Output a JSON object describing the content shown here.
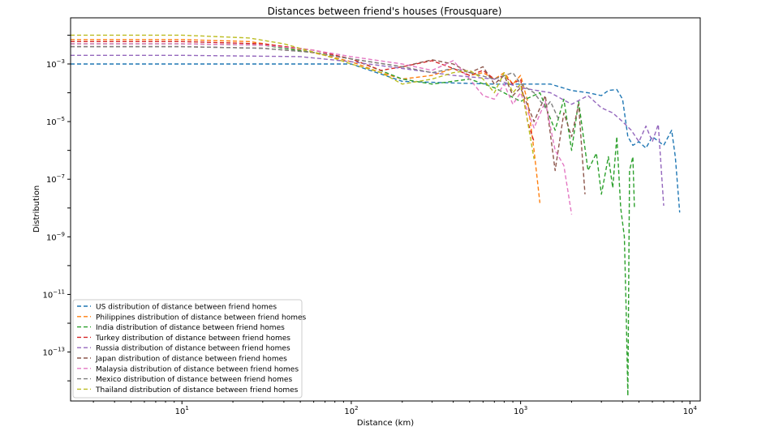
{
  "chart_data": {
    "type": "line",
    "title": "Distances between friend's houses (Frousquare)",
    "xlabel": "Distance (km)",
    "ylabel": "Distribution",
    "xscale": "log",
    "yscale": "log",
    "xlim": [
      2.2,
      11500
    ],
    "ylim": [
      2e-15,
      0.04
    ],
    "x_ticks": [
      {
        "value": 10,
        "base": "10",
        "exp": "1"
      },
      {
        "value": 100,
        "base": "10",
        "exp": "2"
      },
      {
        "value": 1000,
        "base": "10",
        "exp": "3"
      },
      {
        "value": 10000,
        "base": "10",
        "exp": "4"
      }
    ],
    "y_ticks": [
      {
        "value": 0.001,
        "base": "10",
        "exp": "−3"
      },
      {
        "value": 1e-05,
        "base": "10",
        "exp": "−5"
      },
      {
        "value": 1e-07,
        "base": "10",
        "exp": "−7"
      },
      {
        "value": 1e-09,
        "base": "10",
        "exp": "−9"
      },
      {
        "value": 1e-11,
        "base": "10",
        "exp": "−11"
      },
      {
        "value": 1e-13,
        "base": "10",
        "exp": "−13"
      }
    ],
    "grid": false,
    "legend_position": "lower-left",
    "line_style": "dashed",
    "series": [
      {
        "name": "US distribution of distance between friend homes",
        "color": "#1f77b4",
        "x": [
          2.2,
          10,
          50,
          100,
          200,
          400,
          700,
          1000,
          1500,
          2000,
          2500,
          3000,
          3300,
          3700,
          4000,
          4300,
          4600,
          5000,
          5500,
          6000,
          7000,
          7800,
          8200,
          8700
        ],
        "y": [
          0.001,
          0.001,
          0.001,
          0.001,
          0.00025,
          0.00022,
          0.0002,
          0.0002,
          0.0002,
          0.00012,
          0.0001,
          8e-05,
          0.00012,
          0.00013,
          6e-05,
          3e-06,
          1.5e-06,
          2e-06,
          1.2e-06,
          3e-06,
          1.5e-06,
          5e-06,
          6e-07,
          7e-09
        ]
      },
      {
        "name": "Philippines distribution of distance between friend homes",
        "color": "#ff7f0e",
        "x": [
          2.2,
          10,
          25,
          40,
          70,
          100,
          150,
          200,
          300,
          400,
          500,
          600,
          700,
          800,
          900,
          1000,
          1100,
          1200,
          1300
        ],
        "y": [
          0.007,
          0.007,
          0.006,
          0.004,
          0.002,
          0.0012,
          0.0005,
          0.0003,
          0.0004,
          0.0007,
          0.0004,
          0.0005,
          0.0003,
          0.0005,
          0.0002,
          0.0004,
          5e-05,
          1e-06,
          1.5e-08
        ]
      },
      {
        "name": "India distribution of distance between friend homes",
        "color": "#2ca02c",
        "x": [
          2.2,
          10,
          30,
          60,
          100,
          200,
          300,
          500,
          700,
          1000,
          1300,
          1600,
          1800,
          2000,
          2200,
          2500,
          2800,
          3000,
          3300,
          3500,
          3700,
          3900,
          4100,
          4200,
          4300,
          4400,
          4600,
          4700
        ],
        "y": [
          0.005,
          0.005,
          0.0045,
          0.0025,
          0.0015,
          0.0003,
          0.0002,
          0.0003,
          0.00015,
          5e-05,
          0.0001,
          5e-06,
          6e-05,
          1e-06,
          5e-05,
          2e-07,
          8e-07,
          3e-08,
          6e-07,
          5e-08,
          3e-06,
          1e-08,
          1e-09,
          3e-12,
          3e-15,
          2e-07,
          6e-07,
          1e-08
        ]
      },
      {
        "name": "Turkey distribution of distance between friend homes",
        "color": "#d62728",
        "x": [
          2.2,
          10,
          30,
          60,
          100,
          150,
          200,
          300,
          400,
          500,
          600,
          700,
          800,
          900,
          1000,
          1100,
          1200
        ],
        "y": [
          0.006,
          0.006,
          0.005,
          0.003,
          0.0015,
          0.0006,
          0.0008,
          0.0013,
          0.0007,
          0.0004,
          0.0006,
          0.0003,
          0.0004,
          0.0002,
          0.0003,
          1e-05,
          2e-06
        ]
      },
      {
        "name": "Russia distribution of distance between friend homes",
        "color": "#9467bd",
        "x": [
          2.2,
          10,
          50,
          100,
          200,
          400,
          700,
          1000,
          1500,
          2000,
          2500,
          3000,
          3500,
          4000,
          4500,
          5000,
          5500,
          6000,
          6500,
          7000
        ],
        "y": [
          0.002,
          0.002,
          0.0018,
          0.0012,
          0.0007,
          0.0004,
          0.0003,
          0.00015,
          0.0001,
          4e-05,
          8e-05,
          3e-05,
          2e-05,
          1e-05,
          5e-06,
          2e-06,
          7e-06,
          2e-06,
          8e-06,
          1.2e-08
        ]
      },
      {
        "name": "Japan distribution of distance between friend homes",
        "color": "#8c564b",
        "x": [
          2.2,
          10,
          30,
          60,
          100,
          200,
          300,
          400,
          500,
          600,
          700,
          800,
          900,
          1000,
          1200,
          1400,
          1600,
          1800,
          2000,
          2200,
          2400
        ],
        "y": [
          0.004,
          0.004,
          0.0035,
          0.0025,
          0.0015,
          0.0008,
          0.0014,
          0.001,
          0.0005,
          0.0008,
          0.0002,
          0.0004,
          8e-05,
          0.00015,
          1e-05,
          8e-05,
          2e-07,
          2e-05,
          3e-06,
          4e-05,
          3e-08
        ]
      },
      {
        "name": "Malaysia distribution of distance between friend homes",
        "color": "#e377c2",
        "x": [
          2.2,
          10,
          30,
          60,
          100,
          200,
          300,
          400,
          500,
          600,
          700,
          800,
          900,
          1000,
          1200,
          1400,
          1600,
          1800,
          2000
        ],
        "y": [
          0.005,
          0.005,
          0.0045,
          0.003,
          0.0018,
          0.001,
          0.0006,
          0.0013,
          0.0003,
          8e-05,
          6e-05,
          0.0002,
          4e-05,
          0.0001,
          6e-06,
          5e-05,
          1e-06,
          3e-07,
          6e-09
        ]
      },
      {
        "name": "Mexico distribution of distance between friend homes",
        "color": "#7f7f7f",
        "x": [
          2.2,
          10,
          30,
          60,
          100,
          200,
          300,
          400,
          500,
          700,
          900,
          1000,
          1200,
          1400,
          1500,
          1700
        ],
        "y": [
          0.004,
          0.004,
          0.0035,
          0.0025,
          0.0015,
          0.0008,
          0.0005,
          0.0007,
          0.0005,
          0.0003,
          0.0005,
          0.0002,
          0.0001,
          3e-05,
          5e-05,
          1e-05
        ]
      },
      {
        "name": "Thailand distribution of distance between friend homes",
        "color": "#bcbd22",
        "x": [
          2.2,
          10,
          25,
          40,
          70,
          100,
          150,
          200,
          300,
          400,
          500,
          600,
          700,
          800,
          900,
          1000,
          1100,
          1200
        ],
        "y": [
          0.01,
          0.01,
          0.008,
          0.005,
          0.002,
          0.001,
          0.0005,
          0.0002,
          0.0003,
          0.0005,
          0.0006,
          0.0003,
          0.0001,
          0.0005,
          0.0001,
          0.0002,
          1e-05,
          5e-07
        ]
      }
    ]
  }
}
